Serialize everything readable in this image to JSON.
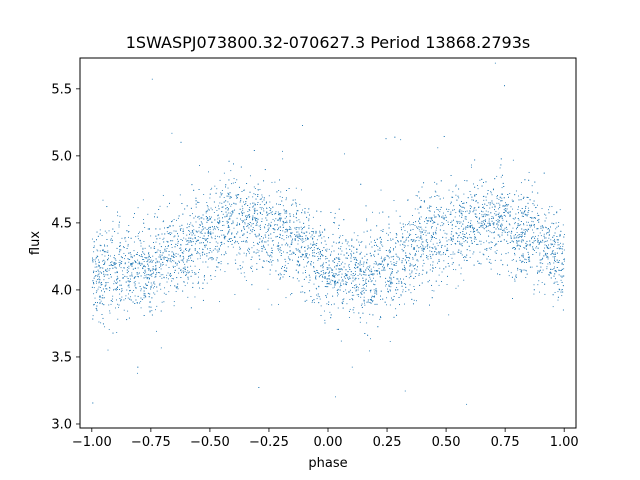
{
  "chart_data": {
    "type": "scatter",
    "title": "1SWASPJ073800.32-070627.3 Period 13868.2793s",
    "xlabel": "phase",
    "ylabel": "flux",
    "xlim": [
      -1.05,
      1.05
    ],
    "ylim": [
      2.97,
      5.73
    ],
    "xticks": [
      -1.0,
      -0.75,
      -0.5,
      -0.25,
      0.0,
      0.25,
      0.5,
      0.75,
      1.0
    ],
    "xtick_labels": [
      "−1.00",
      "−0.75",
      "−0.50",
      "−0.25",
      "0.00",
      "0.25",
      "0.50",
      "0.75",
      "1.00"
    ],
    "yticks": [
      3.0,
      3.5,
      4.0,
      4.5,
      5.0,
      5.5
    ],
    "ytick_labels": [
      "3.0",
      "3.5",
      "4.0",
      "4.5",
      "5.0",
      "5.5"
    ],
    "grid": false,
    "point_color": "#1f77b4",
    "series": [
      {
        "phase_range": [
          -1.0,
          1.0
        ],
        "trend": {
          "x": [
            -1.0,
            -0.9,
            -0.75,
            -0.6,
            -0.5,
            -0.4,
            -0.3,
            -0.2,
            -0.1,
            0.0,
            0.1,
            0.2,
            0.3,
            0.4,
            0.5,
            0.6,
            0.7,
            0.8,
            0.9,
            1.0
          ],
          "y": [
            4.12,
            4.12,
            4.18,
            4.33,
            4.43,
            4.52,
            4.5,
            4.42,
            4.3,
            4.17,
            4.1,
            4.13,
            4.22,
            4.36,
            4.45,
            4.5,
            4.52,
            4.45,
            4.33,
            4.2
          ]
        },
        "scatter_sigma": 0.17
      }
    ]
  }
}
